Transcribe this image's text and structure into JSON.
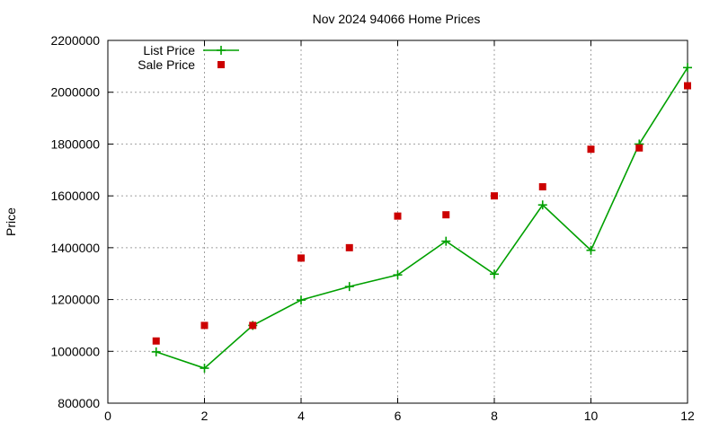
{
  "chart_data": {
    "type": "line",
    "title": "Nov 2024 94066 Home Prices",
    "xlabel": "",
    "ylabel": "Price",
    "xlim": [
      0,
      12
    ],
    "ylim": [
      800000,
      2200000
    ],
    "xticks": [
      0,
      2,
      4,
      6,
      8,
      10,
      12
    ],
    "yticks": [
      800000,
      1000000,
      1200000,
      1400000,
      1600000,
      1800000,
      2000000,
      2200000
    ],
    "grid": true,
    "legend_position": "top-left",
    "series": [
      {
        "name": "List Price",
        "style": "line+cross",
        "color": "#00a000",
        "x": [
          1,
          2,
          3,
          4,
          5,
          6,
          7,
          8,
          9,
          10,
          11,
          12
        ],
        "y": [
          998000,
          935000,
          1100000,
          1198000,
          1250000,
          1295000,
          1425000,
          1298000,
          1565000,
          1390000,
          1800000,
          2095000
        ]
      },
      {
        "name": "Sale Price",
        "style": "square",
        "color": "#cc0000",
        "x": [
          1,
          2,
          3,
          4,
          5,
          6,
          7,
          8,
          9,
          10,
          11,
          12
        ],
        "y": [
          1040000,
          1100000,
          1100000,
          1360000,
          1400000,
          1522000,
          1527000,
          1600000,
          1635000,
          1780000,
          1785000,
          2025000
        ]
      }
    ]
  }
}
